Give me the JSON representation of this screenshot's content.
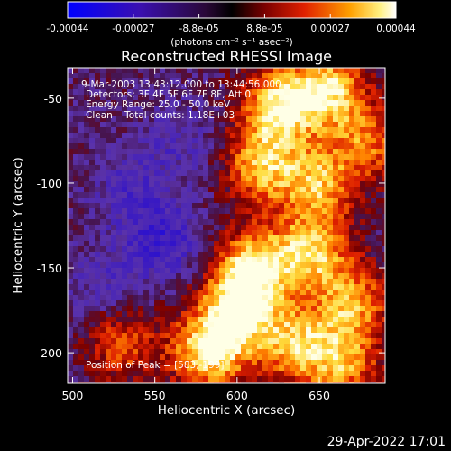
{
  "chart_data": {
    "type": "heatmap",
    "title": "Reconstructed RHESSI Image",
    "xlabel": "Heliocentric X (arcsec)",
    "ylabel": "Heliocentric Y (arcsec)",
    "xlim": [
      497,
      690
    ],
    "ylim": [
      -218,
      -32
    ],
    "x_ticks": [
      500,
      550,
      600,
      650
    ],
    "y_ticks": [
      -50,
      -100,
      -150,
      -200
    ],
    "colorbar": {
      "ticks": [
        "-0.00044",
        "-0.00027",
        "-8.8e-05",
        "8.8e-05",
        "0.00027",
        "0.00044"
      ],
      "range": [
        -0.00044,
        0.00044
      ],
      "unit_label": "(photons cm⁻² s⁻¹ asec⁻²)",
      "colormap": "blue-purple-red-yellow-white"
    },
    "annotations": [
      "9-Mar-2003 13:43:12.000 to 13:44:56.000",
      "Detectors: 3F 4F 5F 6F 7F 8F, Att 0",
      "Energy Range: 25.0 - 50.0 keV",
      "Clean    Total counts: 1.18E+03"
    ],
    "peak_label": "Position of Peak = [583,-199]",
    "bright_regions": [
      {
        "x": 625,
        "y": -55,
        "level": 0.95
      },
      {
        "x": 655,
        "y": -45,
        "level": 0.9
      },
      {
        "x": 615,
        "y": -90,
        "level": 0.8
      },
      {
        "x": 650,
        "y": -100,
        "level": 0.75
      },
      {
        "x": 610,
        "y": -150,
        "level": 0.95
      },
      {
        "x": 645,
        "y": -140,
        "level": 0.85
      },
      {
        "x": 600,
        "y": -175,
        "level": 0.9
      },
      {
        "x": 583,
        "y": -199,
        "level": 1.0
      },
      {
        "x": 635,
        "y": -195,
        "level": 0.8
      },
      {
        "x": 670,
        "y": -170,
        "level": 0.7
      },
      {
        "x": 665,
        "y": -205,
        "level": 0.7
      },
      {
        "x": 680,
        "y": -75,
        "level": 0.6
      },
      {
        "x": 530,
        "y": -195,
        "level": 0.55
      }
    ],
    "dark_regions": [
      {
        "x": 555,
        "y": -135,
        "level": -0.45
      },
      {
        "x": 535,
        "y": -105,
        "level": -0.3
      },
      {
        "x": 565,
        "y": -75,
        "level": -0.25
      },
      {
        "x": 520,
        "y": -160,
        "level": -0.25
      }
    ]
  },
  "footer": {
    "date": "29-Apr-2022 17:01"
  }
}
